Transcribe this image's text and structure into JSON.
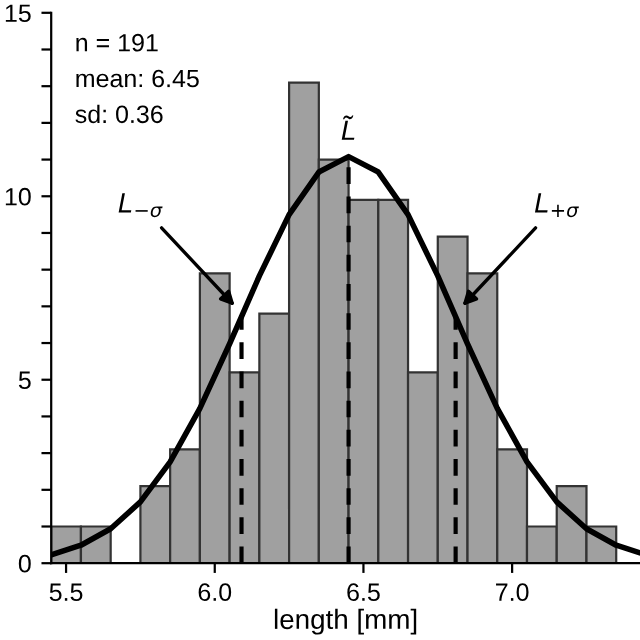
{
  "chart_data": {
    "type": "histogram",
    "xlabel": "length [mm]",
    "bins": [
      5.45,
      5.55,
      5.65,
      5.75,
      5.85,
      5.95,
      6.05,
      6.15,
      6.25,
      6.35,
      6.45,
      6.55,
      6.65,
      6.75,
      6.85,
      6.95,
      7.05,
      7.15,
      7.25,
      7.35
    ],
    "values": [
      1.0,
      1.0,
      0,
      2.1,
      3.1,
      7.9,
      5.2,
      6.8,
      13.1,
      11.0,
      9.9,
      9.9,
      5.2,
      8.9,
      7.9,
      3.1,
      1.0,
      2.1,
      1.0
    ],
    "color": "#a0a0a0",
    "series": [
      {
        "type": "line",
        "color": "#000000",
        "x": [
          5.45,
          5.55,
          5.65,
          5.75,
          5.85,
          5.95,
          6.05,
          6.15,
          6.25,
          6.35,
          6.45,
          6.55,
          6.65,
          6.75,
          6.85,
          6.95,
          7.05,
          7.15,
          7.25,
          7.35,
          7.43
        ],
        "values": [
          0.23,
          0.49,
          0.94,
          1.67,
          2.76,
          4.22,
          5.98,
          7.83,
          9.5,
          10.66,
          11.08,
          10.66,
          9.5,
          7.83,
          5.98,
          4.22,
          2.76,
          1.67,
          0.94,
          0.49,
          0.28
        ]
      }
    ],
    "ref_lines": [
      {
        "axis": "x",
        "value": 6.09,
        "line_style": "dashed",
        "color": "#000000"
      },
      {
        "axis": "x",
        "value": 6.45,
        "line_style": "dashed",
        "color": "#000000"
      },
      {
        "axis": "x",
        "value": 6.81,
        "line_style": "dashed",
        "color": "#000000"
      }
    ],
    "annotations": [
      "n = 191",
      "mean: 6.45",
      "sd: 0.36",
      {
        "text": "L$_{−σ}$",
        "x": 6.08,
        "y": 6.9
      },
      {
        "text": "L̃",
        "x": 6.45,
        "y": 11.08
      },
      {
        "text": "L$_{+σ}$",
        "x": 6.82,
        "y": 6.9
      }
    ],
    "xlim": [
      5.45,
      7.43
    ],
    "xticks": [
      {
        "value": 5.5,
        "label": "5.5"
      },
      {
        "value": 6.0,
        "label": "6.0"
      },
      {
        "value": 6.5,
        "label": "6.5"
      },
      {
        "value": 7.0,
        "label": "7.0"
      }
    ],
    "ylim": [
      0,
      15
    ],
    "yticks": [
      0,
      {
        "value": 1,
        "label": null
      },
      {
        "value": 2,
        "label": null
      },
      {
        "value": 3,
        "label": null
      },
      {
        "value": 4,
        "label": null
      },
      5,
      {
        "value": 6,
        "label": null
      },
      {
        "value": 7,
        "label": null
      },
      {
        "value": 8,
        "label": null
      },
      {
        "value": 9,
        "label": null
      },
      10,
      {
        "value": 11,
        "label": null
      },
      {
        "value": 12,
        "label": null
      },
      {
        "value": 13,
        "label": null
      },
      {
        "value": 14,
        "label": null
      },
      15
    ],
    "grid": false,
    "legend": false
  }
}
